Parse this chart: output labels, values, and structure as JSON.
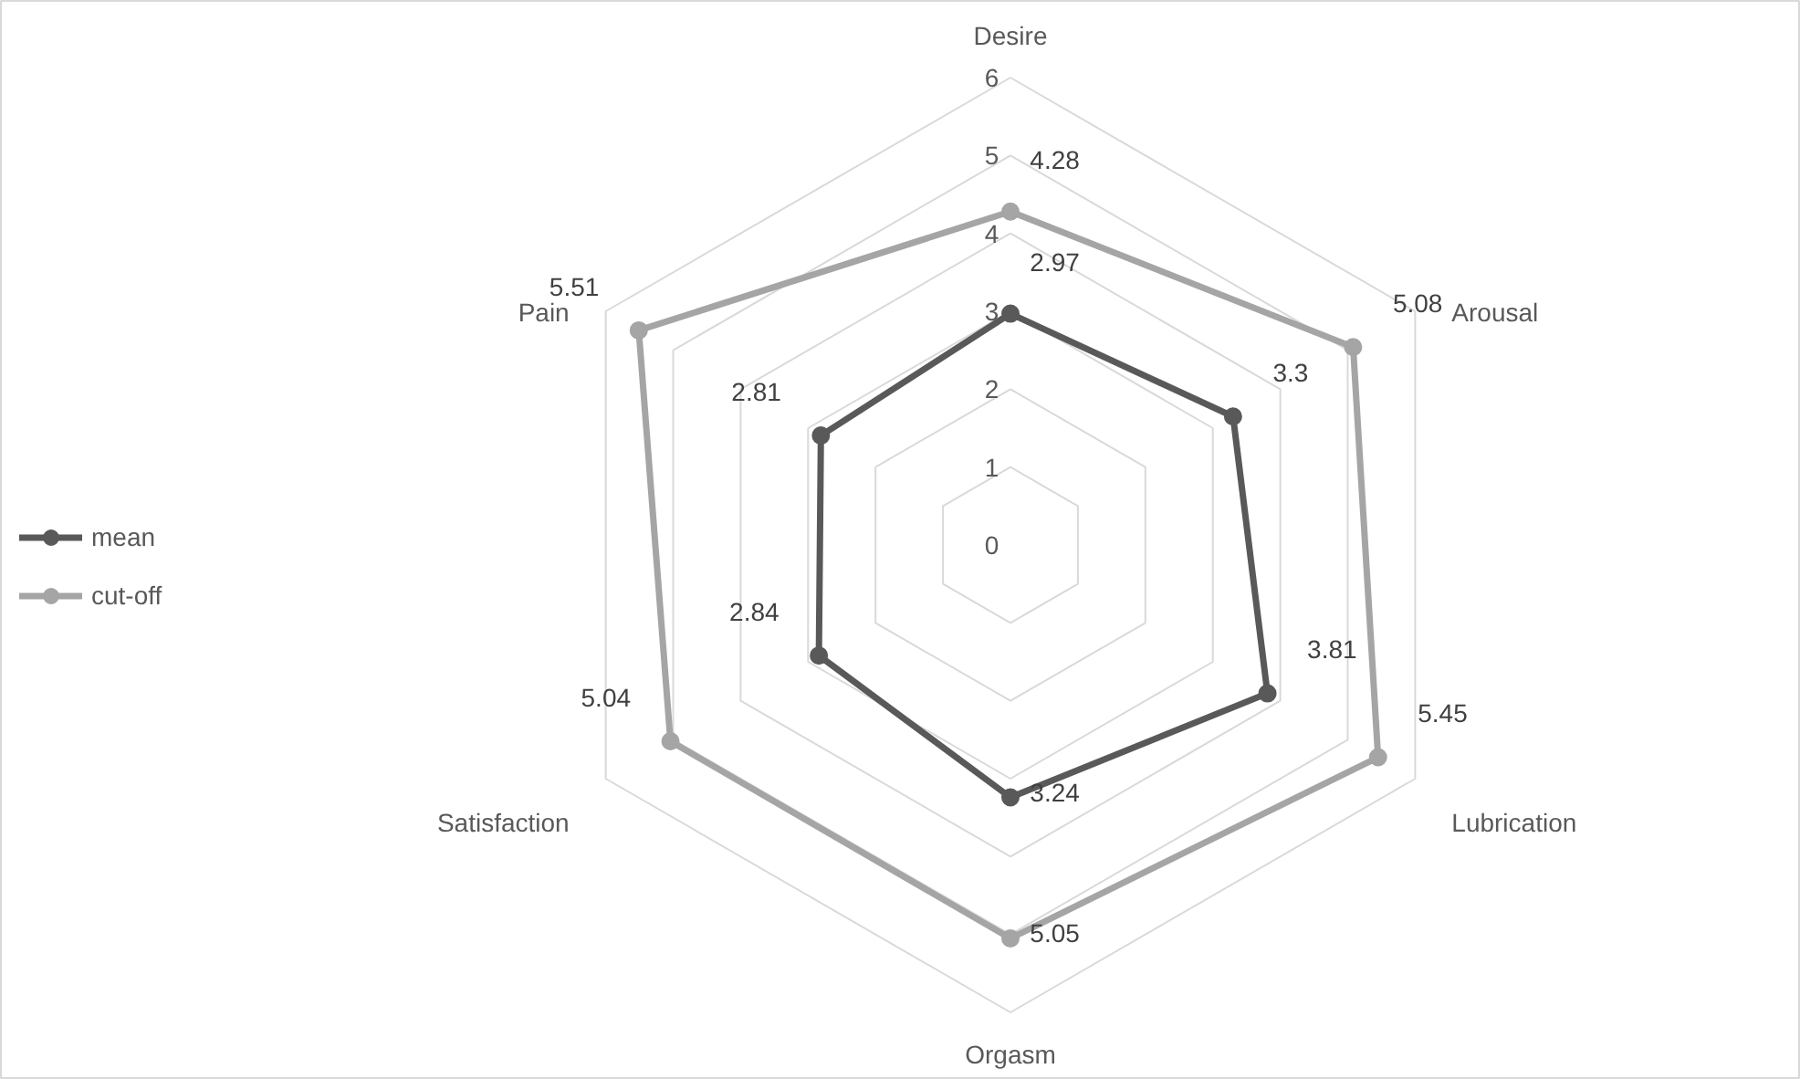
{
  "chart_data": {
    "type": "radar",
    "categories": [
      "Desire",
      "Arousal",
      "Lubrication",
      "Orgasm",
      "Satisfaction",
      "Pain"
    ],
    "series": [
      {
        "name": "mean",
        "color": "#595959",
        "values": [
          2.97,
          3.3,
          3.81,
          3.24,
          2.84,
          2.81
        ]
      },
      {
        "name": "cut-off",
        "color": "#a5a5a5",
        "values": [
          4.28,
          5.08,
          5.45,
          5.05,
          5.04,
          5.51
        ]
      }
    ],
    "ylim": [
      0,
      6
    ],
    "yticks": [
      0,
      1,
      2,
      3,
      4,
      5,
      6
    ],
    "grid": true,
    "legend": "left",
    "marker": "circle",
    "data_labels": true
  }
}
